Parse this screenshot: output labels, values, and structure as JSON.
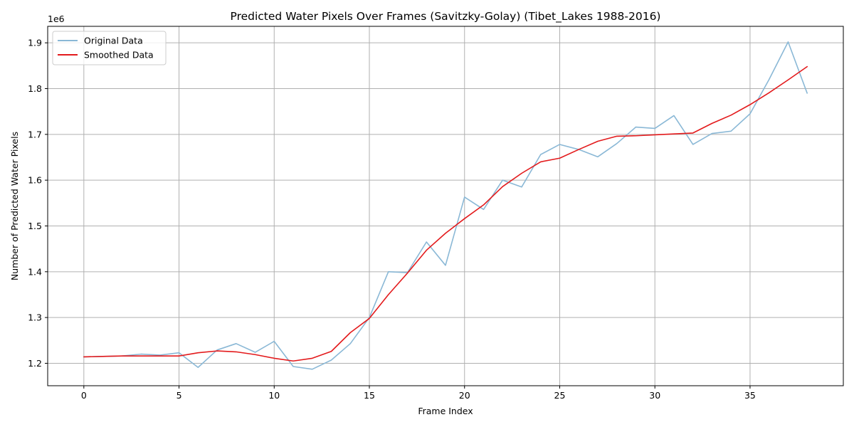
{
  "chart_data": {
    "type": "line",
    "title": "Predicted Water Pixels Over Frames (Savitzky-Golay) (Tibet_Lakes 1988-2016)",
    "xlabel": "Frame Index",
    "ylabel": "Number of Predicted Water Pixels",
    "offset_label": "1e6",
    "xlim": [
      -1.9,
      39.9
    ],
    "ylim": [
      1.151,
      1.936
    ],
    "x_ticks": [
      0,
      5,
      10,
      15,
      20,
      25,
      30,
      35
    ],
    "x_tick_labels": [
      "0",
      "5",
      "10",
      "15",
      "20",
      "25",
      "30",
      "35"
    ],
    "y_ticks": [
      1.2,
      1.3,
      1.4,
      1.5,
      1.6,
      1.7,
      1.8,
      1.9
    ],
    "y_tick_labels": [
      "1.2",
      "1.3",
      "1.4",
      "1.5",
      "1.6",
      "1.7",
      "1.8",
      "1.9"
    ],
    "grid": true,
    "legend_position": "upper-left",
    "x": [
      0,
      1,
      2,
      3,
      4,
      5,
      6,
      7,
      8,
      9,
      10,
      11,
      12,
      13,
      14,
      15,
      16,
      17,
      18,
      19,
      20,
      21,
      22,
      23,
      24,
      25,
      26,
      27,
      28,
      29,
      30,
      31,
      32,
      33,
      34,
      35,
      36,
      37,
      38
    ],
    "series": [
      {
        "name": "Original Data",
        "color": "#8ab8d6",
        "values": [
          1.214,
          1.215,
          1.216,
          1.22,
          1.218,
          1.223,
          1.191,
          1.229,
          1.243,
          1.224,
          1.248,
          1.193,
          1.187,
          1.207,
          1.243,
          1.3,
          1.4,
          1.398,
          1.465,
          1.414,
          1.563,
          1.536,
          1.6,
          1.585,
          1.656,
          1.678,
          1.667,
          1.651,
          1.68,
          1.716,
          1.713,
          1.741,
          1.678,
          1.702,
          1.707,
          1.745,
          1.82,
          1.902,
          1.79
        ]
      },
      {
        "name": "Smoothed Data",
        "color": "#e31a1c",
        "values": [
          1.214,
          1.215,
          1.216,
          1.216,
          1.216,
          1.216,
          1.223,
          1.227,
          1.225,
          1.219,
          1.211,
          1.205,
          1.211,
          1.226,
          1.267,
          1.298,
          1.35,
          1.397,
          1.447,
          1.484,
          1.516,
          1.546,
          1.586,
          1.615,
          1.64,
          1.648,
          1.667,
          1.685,
          1.696,
          1.697,
          1.699,
          1.701,
          1.703,
          1.724,
          1.742,
          1.765,
          1.791,
          1.819,
          1.848
        ]
      }
    ]
  }
}
